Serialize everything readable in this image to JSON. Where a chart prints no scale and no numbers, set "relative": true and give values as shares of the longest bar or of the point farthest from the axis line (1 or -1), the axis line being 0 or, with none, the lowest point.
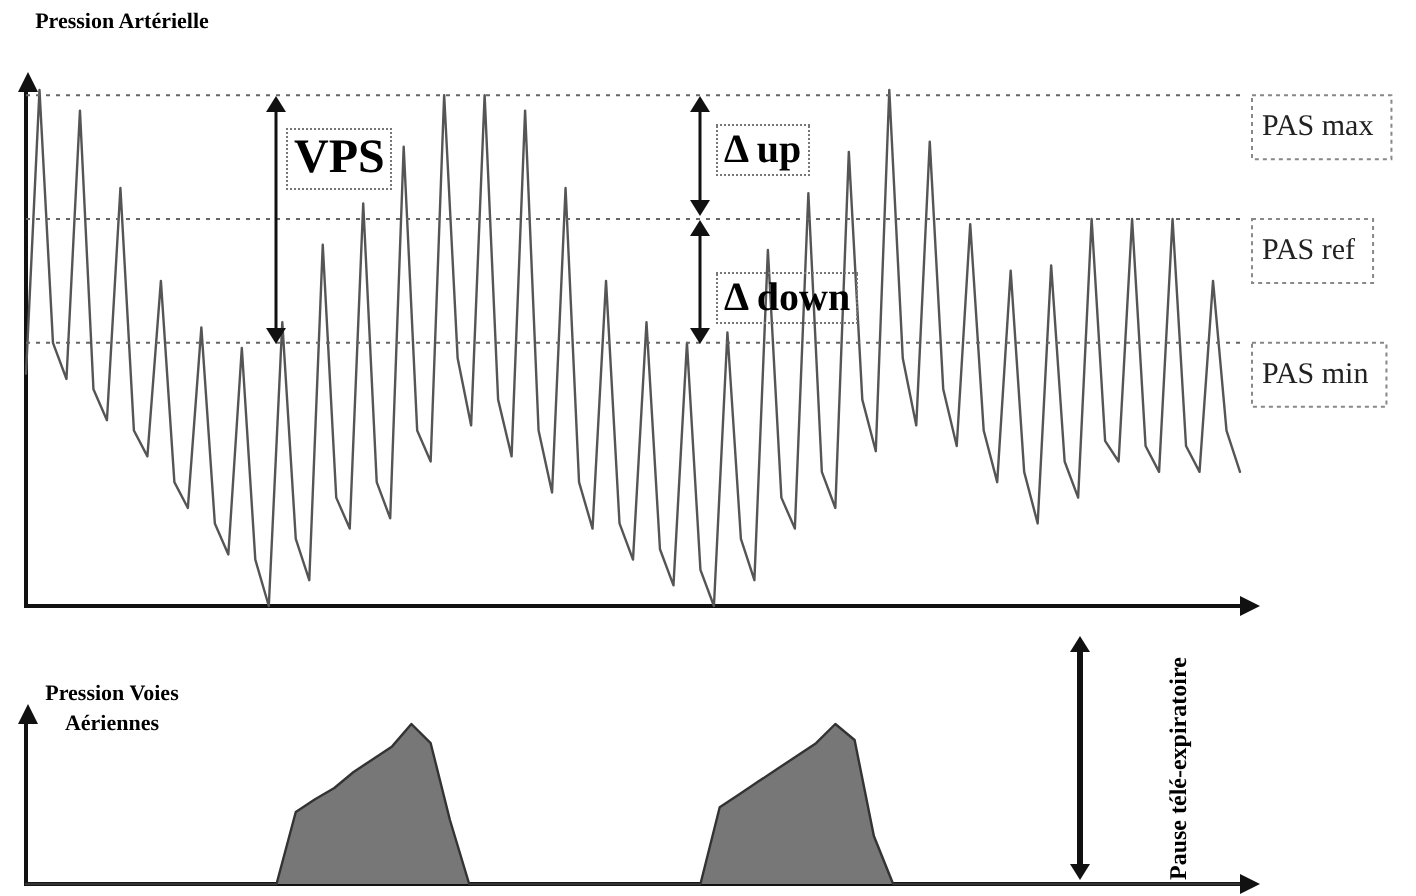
{
  "chart_data": [
    {
      "type": "line",
      "relative": true,
      "ylabel": "Pression Artérielle",
      "legend": false,
      "grid": false,
      "marker": "none",
      "line_style": "solid",
      "categories": [
        null,
        null,
        null,
        null,
        null,
        null,
        null,
        null,
        null,
        null,
        null,
        null,
        null,
        null,
        null,
        null,
        null,
        null,
        null,
        null,
        null,
        null,
        null,
        null,
        null,
        null,
        null,
        null,
        null,
        null,
        null,
        null,
        null,
        null,
        null,
        null,
        null,
        null,
        null,
        null,
        null,
        null,
        null,
        null,
        null,
        null,
        null,
        null,
        null,
        null,
        null,
        null,
        null,
        null,
        null,
        null,
        null,
        null,
        null,
        null,
        null,
        null,
        null,
        null,
        null,
        null,
        null,
        null,
        null,
        null,
        null,
        null,
        null,
        null,
        null,
        null,
        null,
        null,
        null,
        null,
        null,
        null,
        null,
        null,
        null,
        null,
        null,
        null,
        null,
        null,
        null
      ],
      "series": [
        {
          "color": "#555555",
          "values": [
            0.45,
            1.0,
            0.51,
            0.44,
            0.96,
            0.42,
            0.36,
            0.81,
            0.34,
            0.29,
            0.63,
            0.24,
            0.19,
            0.54,
            0.16,
            0.1,
            0.5,
            0.09,
            0.0,
            0.55,
            0.13,
            0.05,
            0.7,
            0.21,
            0.15,
            0.78,
            0.24,
            0.17,
            0.89,
            0.34,
            0.28,
            0.99,
            0.48,
            0.35,
            0.99,
            0.4,
            0.29,
            0.96,
            0.34,
            0.22,
            0.81,
            0.24,
            0.15,
            0.63,
            0.16,
            0.09,
            0.55,
            0.11,
            0.04,
            0.51,
            0.07,
            0.0,
            0.53,
            0.13,
            0.05,
            0.69,
            0.21,
            0.15,
            0.8,
            0.26,
            0.19,
            0.88,
            0.4,
            0.3,
            1.0,
            0.48,
            0.35,
            0.9,
            0.42,
            0.31,
            0.74,
            0.34,
            0.24,
            0.65,
            0.26,
            0.16,
            0.66,
            0.28,
            0.21,
            0.75,
            0.32,
            0.28,
            0.75,
            0.31,
            0.26,
            0.75,
            0.31,
            0.26,
            0.63,
            0.34,
            0.26
          ]
        }
      ],
      "ref_lines": [
        {
          "axis": "y",
          "value": 0.99,
          "label": "PAS max",
          "color": "#666666",
          "line_style": "dotted"
        },
        {
          "axis": "y",
          "value": 0.75,
          "label": "PAS ref",
          "color": "#666666",
          "line_style": "dotted"
        },
        {
          "axis": "y",
          "value": 0.51,
          "label": "PAS min",
          "color": "#666666",
          "line_style": "dotted"
        }
      ],
      "annotations": [
        "VPS",
        "Δ up",
        "Δ down"
      ]
    },
    {
      "type": "area",
      "relative": true,
      "ylabel": "Pression Voies Aériennes",
      "legend": false,
      "grid": false,
      "marker": "none",
      "categories": [
        null,
        null,
        null,
        null,
        null,
        null,
        null,
        null,
        null,
        null,
        null,
        null,
        null,
        null,
        null,
        null,
        null,
        null,
        null,
        null,
        null,
        null,
        null,
        null,
        null,
        null,
        null,
        null,
        null,
        null,
        null,
        null,
        null,
        null,
        null,
        null,
        null,
        null,
        null,
        null,
        null,
        null,
        null,
        null,
        null,
        null,
        null,
        null,
        null,
        null,
        null,
        null,
        null,
        null,
        null,
        null,
        null,
        null,
        null,
        null,
        null,
        null,
        null,
        null
      ],
      "series": [
        {
          "color": "#777777",
          "values": [
            0,
            0,
            0,
            0,
            0,
            0,
            0,
            0,
            0,
            0,
            0,
            0,
            0,
            0,
            0.45,
            0.53,
            0.6,
            0.7,
            0.78,
            0.86,
            1.0,
            0.88,
            0.4,
            0,
            0,
            0,
            0,
            0,
            0,
            0,
            0,
            0,
            0,
            0,
            0,
            0,
            0.48,
            0.56,
            0.64,
            0.72,
            0.8,
            0.88,
            1.0,
            0.9,
            0.3,
            0,
            0,
            0,
            0,
            0,
            0,
            0,
            0,
            0,
            0,
            0,
            0,
            0,
            0,
            0,
            0,
            0,
            0,
            0
          ]
        }
      ],
      "annotations": [
        "Pause télé-expiratoire"
      ]
    }
  ]
}
